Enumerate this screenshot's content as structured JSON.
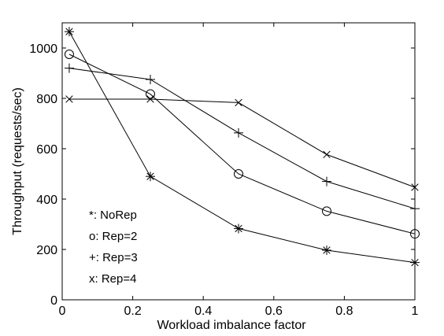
{
  "chart_data": {
    "type": "line",
    "title": "",
    "xlabel": "Workload imbalance factor",
    "ylabel": "Throughput (requests/sec)",
    "xlim": [
      0,
      1
    ],
    "ylim": [
      0,
      1100
    ],
    "xticks": [
      0,
      0.2,
      0.4,
      0.6,
      0.8,
      1
    ],
    "xtick_labels": [
      "0",
      "0.2",
      "0.4",
      "0.6",
      "0.8",
      "1"
    ],
    "yticks": [
      0,
      200,
      400,
      600,
      800,
      1000
    ],
    "ytick_labels": [
      "0",
      "200",
      "400",
      "600",
      "800",
      "1000"
    ],
    "grid": false,
    "legend_position": "lower-left",
    "legend": [
      {
        "text": "*: NoRep"
      },
      {
        "text": "o: Rep=2"
      },
      {
        "text": "+: Rep=3"
      },
      {
        "text": "x: Rep=4"
      }
    ],
    "series": [
      {
        "name": "NoRep",
        "marker": "asterisk",
        "x": [
          0.02,
          0.25,
          0.5,
          0.75,
          1.0
        ],
        "y": [
          1065,
          490,
          283,
          197,
          148
        ]
      },
      {
        "name": "Rep=2",
        "marker": "circle",
        "x": [
          0.02,
          0.25,
          0.5,
          0.75,
          1.0
        ],
        "y": [
          975,
          817,
          500,
          352,
          262
        ]
      },
      {
        "name": "Rep=3",
        "marker": "plus",
        "x": [
          0.02,
          0.25,
          0.5,
          0.75,
          1.0
        ],
        "y": [
          920,
          875,
          663,
          470,
          362
        ]
      },
      {
        "name": "Rep=4",
        "marker": "cross",
        "x": [
          0.02,
          0.25,
          0.5,
          0.75,
          1.0
        ],
        "y": [
          797,
          797,
          783,
          577,
          447
        ]
      }
    ]
  }
}
